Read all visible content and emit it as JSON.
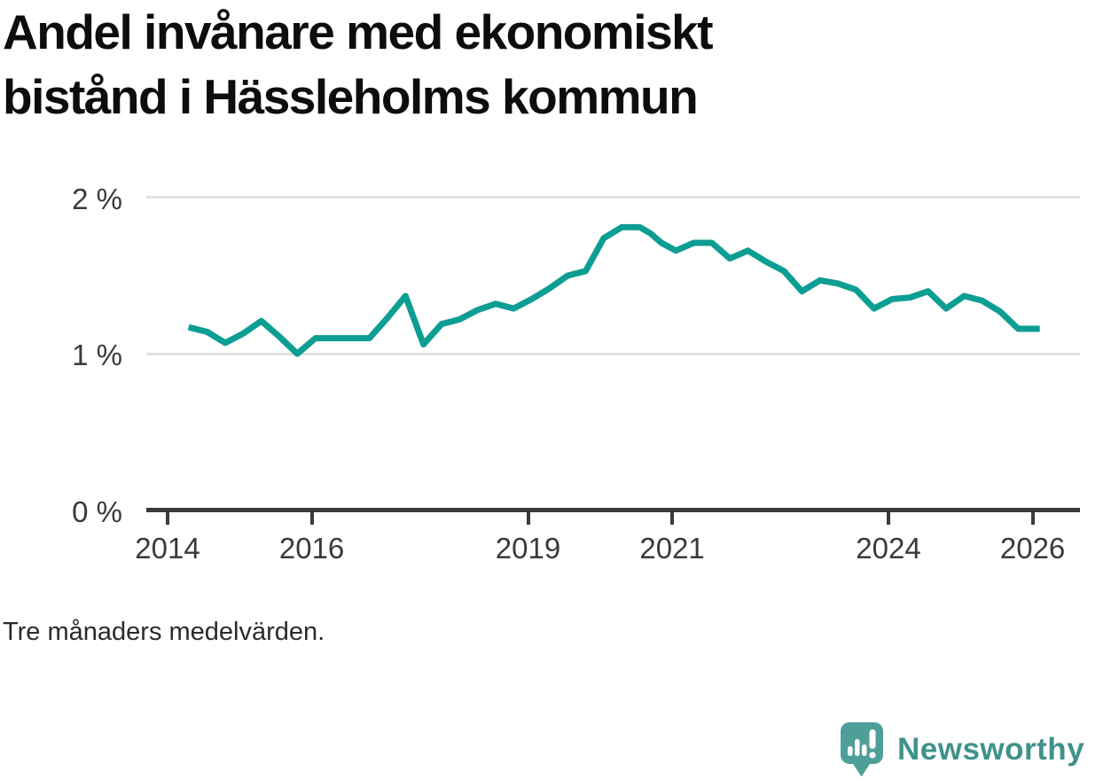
{
  "header": {
    "title_lines": [
      "Andel invånare med ekonomiskt",
      "bistånd i Hässleholms kommun"
    ]
  },
  "footnote": {
    "text": "Tre månaders medelvärden."
  },
  "brand": {
    "name": "Newsworthy"
  },
  "colors": {
    "line": "#0d9e93",
    "grid": "#e1e1e1",
    "axis": "#3b3b3b",
    "tick_label": "#3a3a3a",
    "title": "#0d0d0d",
    "brand_teal": "#4f9f99",
    "brand_text": "#3f928c"
  },
  "chart_data": {
    "type": "line",
    "title": "Andel invånare med ekonomiskt bistånd i Hässleholms kommun",
    "unit": "%",
    "note": "Tre månaders medelvärden.",
    "grid": "horizontal",
    "legend_position": "none",
    "xlim": [
      2013.7,
      2026.65
    ],
    "ylim": [
      0,
      2.2
    ],
    "x_ticks": [
      {
        "label": "2014",
        "year": 2014
      },
      {
        "label": "2016",
        "year": 2016
      },
      {
        "label": "2019",
        "year": 2019
      },
      {
        "label": "2021",
        "year": 2021
      },
      {
        "label": "2024",
        "year": 2024
      },
      {
        "label": "2026",
        "year": 2026
      }
    ],
    "y_ticks": [
      {
        "label": "2 %",
        "value": 2
      },
      {
        "label": "1 %",
        "value": 1
      },
      {
        "label": "0 %",
        "value": 0
      }
    ],
    "series": [
      {
        "name": "Andel invånare med ekonomiskt bistånd",
        "color": "#0d9e93",
        "points": [
          [
            2014.29,
            1.17
          ],
          [
            2014.55,
            1.14
          ],
          [
            2014.8,
            1.07
          ],
          [
            2015.05,
            1.13
          ],
          [
            2015.3,
            1.21
          ],
          [
            2015.55,
            1.11
          ],
          [
            2015.8,
            1.0
          ],
          [
            2016.05,
            1.1
          ],
          [
            2016.3,
            1.1
          ],
          [
            2016.55,
            1.1
          ],
          [
            2016.8,
            1.1
          ],
          [
            2017.05,
            1.23
          ],
          [
            2017.3,
            1.37
          ],
          [
            2017.55,
            1.06
          ],
          [
            2017.8,
            1.19
          ],
          [
            2018.05,
            1.22
          ],
          [
            2018.3,
            1.28
          ],
          [
            2018.55,
            1.32
          ],
          [
            2018.8,
            1.29
          ],
          [
            2019.05,
            1.35
          ],
          [
            2019.3,
            1.42
          ],
          [
            2019.55,
            1.5
          ],
          [
            2019.8,
            1.53
          ],
          [
            2020.05,
            1.74
          ],
          [
            2020.3,
            1.81
          ],
          [
            2020.55,
            1.81
          ],
          [
            2020.7,
            1.77
          ],
          [
            2020.85,
            1.71
          ],
          [
            2021.05,
            1.66
          ],
          [
            2021.3,
            1.71
          ],
          [
            2021.55,
            1.71
          ],
          [
            2021.8,
            1.61
          ],
          [
            2022.05,
            1.66
          ],
          [
            2022.3,
            1.59
          ],
          [
            2022.55,
            1.53
          ],
          [
            2022.8,
            1.4
          ],
          [
            2023.05,
            1.47
          ],
          [
            2023.3,
            1.45
          ],
          [
            2023.55,
            1.41
          ],
          [
            2023.8,
            1.29
          ],
          [
            2024.05,
            1.35
          ],
          [
            2024.3,
            1.36
          ],
          [
            2024.55,
            1.4
          ],
          [
            2024.8,
            1.29
          ],
          [
            2025.05,
            1.37
          ],
          [
            2025.3,
            1.34
          ],
          [
            2025.55,
            1.27
          ],
          [
            2025.8,
            1.16
          ],
          [
            2026.1,
            1.16
          ]
        ]
      }
    ]
  }
}
